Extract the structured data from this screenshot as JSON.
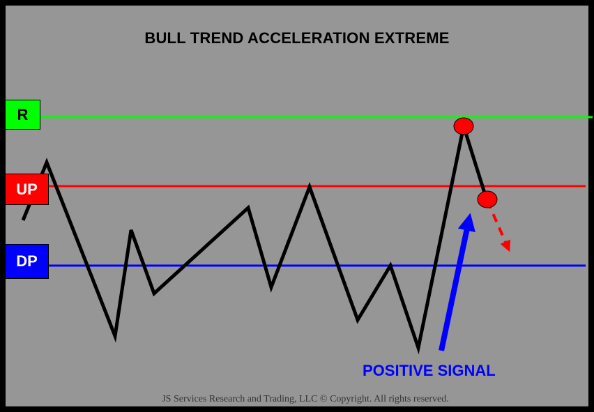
{
  "title": "BULL TREND ACCELERATION EXTREME",
  "levels": [
    {
      "id": "r",
      "label": "R",
      "color": "#00ff00",
      "text_color": "#000000"
    },
    {
      "id": "up",
      "label": "UP",
      "color": "#ff0000",
      "text_color": "#ffffff"
    },
    {
      "id": "dp",
      "label": "DP",
      "color": "#0000ff",
      "text_color": "#ffffff"
    }
  ],
  "signal_label": "POSITIVE SIGNAL",
  "signal_color": "#0000ff",
  "marker_color": "#ff0000",
  "price_line_color": "#000000",
  "background_color": "#969696",
  "copyright": "JS Services Research  and Trading, LLC © Copyright. All rights reserved."
}
